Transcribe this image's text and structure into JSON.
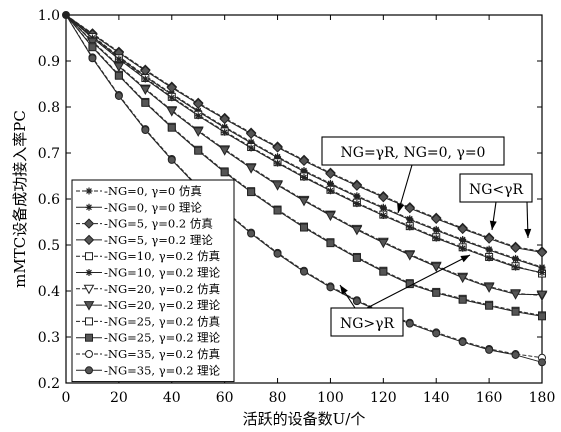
{
  "chart_data": {
    "type": "line",
    "xlabel": "活跃的设备数U/个",
    "ylabel": "mMTC设备成功接入率PC",
    "xlim": [
      0,
      180
    ],
    "ylim": [
      0.2,
      1.0
    ],
    "xticks": [
      "0",
      "20",
      "40",
      "60",
      "80",
      "100",
      "120",
      "140",
      "160",
      "180"
    ],
    "yticks": [
      "0.2",
      "0.3",
      "0.4",
      "0.5",
      "0.6",
      "0.7",
      "0.8",
      "0.9",
      "1.0"
    ],
    "x": [
      0,
      10,
      20,
      30,
      40,
      50,
      60,
      70,
      80,
      90,
      100,
      110,
      120,
      130,
      140,
      150,
      160,
      170,
      180
    ],
    "series": [
      {
        "name": "NG=0, γ=0 仿真",
        "marker": "star",
        "dashed": true,
        "values": [
          1.0,
          0.955,
          0.91,
          0.868,
          0.829,
          0.792,
          0.757,
          0.724,
          0.692,
          0.662,
          0.634,
          0.607,
          0.582,
          0.557,
          0.534,
          0.512,
          0.491,
          0.471,
          0.452
        ]
      },
      {
        "name": "NG=0, γ=0 理论",
        "marker": "star",
        "dashed": false,
        "values": [
          1.0,
          0.953,
          0.908,
          0.866,
          0.827,
          0.79,
          0.755,
          0.722,
          0.69,
          0.66,
          0.632,
          0.605,
          0.58,
          0.555,
          0.532,
          0.51,
          0.489,
          0.469,
          0.45
        ]
      },
      {
        "name": "NG=5, γ=0.2 仿真",
        "marker": "diamond",
        "dashed": true,
        "values": [
          1.0,
          0.96,
          0.92,
          0.881,
          0.844,
          0.809,
          0.776,
          0.744,
          0.714,
          0.685,
          0.657,
          0.631,
          0.606,
          0.582,
          0.559,
          0.537,
          0.516,
          0.496,
          0.486
        ]
      },
      {
        "name": "NG=5, γ=0.2 理论",
        "marker": "diamond",
        "dashed": false,
        "values": [
          1.0,
          0.958,
          0.918,
          0.879,
          0.842,
          0.807,
          0.774,
          0.742,
          0.712,
          0.683,
          0.655,
          0.629,
          0.604,
          0.58,
          0.557,
          0.535,
          0.514,
          0.494,
          0.484
        ]
      },
      {
        "name": "NG=10, γ=0.2 仿真",
        "marker": "square-open",
        "dashed": true,
        "values": [
          1.0,
          0.952,
          0.906,
          0.863,
          0.822,
          0.783,
          0.747,
          0.713,
          0.68,
          0.649,
          0.62,
          0.592,
          0.566,
          0.541,
          0.517,
          0.495,
          0.474,
          0.454,
          0.438
        ]
      },
      {
        "name": "NG=10, γ=0.2 理论",
        "marker": "star",
        "dashed": false,
        "values": [
          1.0,
          0.95,
          0.904,
          0.861,
          0.82,
          0.781,
          0.745,
          0.711,
          0.678,
          0.647,
          0.618,
          0.59,
          0.564,
          0.539,
          0.515,
          0.493,
          0.472,
          0.452,
          0.44
        ]
      },
      {
        "name": "NG=20, γ=0.2 仿真",
        "marker": "triangle-open",
        "dashed": true,
        "values": [
          1.0,
          0.943,
          0.89,
          0.84,
          0.793,
          0.749,
          0.708,
          0.669,
          0.632,
          0.598,
          0.566,
          0.535,
          0.507,
          0.48,
          0.455,
          0.431,
          0.41,
          0.395,
          0.39
        ]
      },
      {
        "name": "NG=20, γ=0.2 理论",
        "marker": "triangle",
        "dashed": false,
        "values": [
          1.0,
          0.941,
          0.888,
          0.838,
          0.791,
          0.747,
          0.706,
          0.667,
          0.63,
          0.596,
          0.564,
          0.533,
          0.505,
          0.478,
          0.453,
          0.429,
          0.408,
          0.393,
          0.392
        ]
      },
      {
        "name": "NG=25, γ=0.2 仿真",
        "marker": "square-open",
        "dashed": true,
        "values": [
          1.0,
          0.932,
          0.87,
          0.811,
          0.757,
          0.707,
          0.66,
          0.617,
          0.577,
          0.54,
          0.506,
          0.474,
          0.444,
          0.417,
          0.398,
          0.383,
          0.37,
          0.357,
          0.347
        ]
      },
      {
        "name": "NG=25, γ=0.2 理论",
        "marker": "square",
        "dashed": false,
        "values": [
          1.0,
          0.93,
          0.868,
          0.809,
          0.755,
          0.705,
          0.658,
          0.615,
          0.575,
          0.538,
          0.504,
          0.472,
          0.442,
          0.415,
          0.396,
          0.381,
          0.368,
          0.355,
          0.345
        ]
      },
      {
        "name": "NG=35, γ=0.2 仿真",
        "marker": "circle-open",
        "dashed": true,
        "values": [
          1.0,
          0.908,
          0.826,
          0.752,
          0.687,
          0.627,
          0.575,
          0.527,
          0.483,
          0.444,
          0.41,
          0.38,
          0.354,
          0.331,
          0.31,
          0.291,
          0.274,
          0.263,
          0.255
        ]
      },
      {
        "name": "NG=35, γ=0.2 理论",
        "marker": "circle",
        "dashed": false,
        "values": [
          1.0,
          0.906,
          0.824,
          0.75,
          0.685,
          0.625,
          0.573,
          0.525,
          0.481,
          0.442,
          0.408,
          0.378,
          0.352,
          0.329,
          0.308,
          0.289,
          0.272,
          0.261,
          0.245
        ]
      }
    ],
    "annotations": [
      "NG=γR, NG=0, γ=0",
      "NG<γR",
      "NG>γR"
    ],
    "legend_position": "lower-left",
    "grid": false
  }
}
